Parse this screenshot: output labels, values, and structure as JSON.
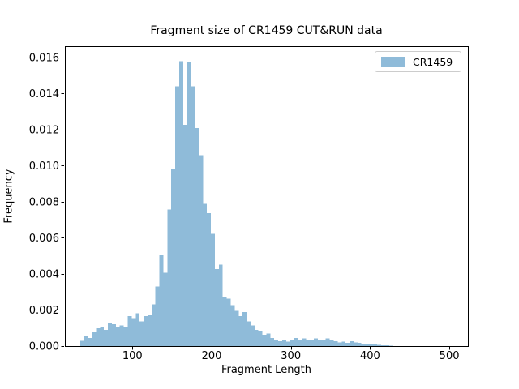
{
  "title": "Fragment size of CR1459 CUT&RUN data",
  "axes": {
    "xlabel": "Fragment Length",
    "ylabel": "Frequency"
  },
  "legend": {
    "label": "CR1459",
    "position": "upper right"
  },
  "colors": {
    "bar_fill": "#8fbbd9",
    "axis": "#000000",
    "background": "#ffffff",
    "legend_border": "#cccccc"
  },
  "chart_data": {
    "type": "bar",
    "subtype": "histogram",
    "title": "Fragment size of CR1459 CUT&RUN data",
    "xlabel": "Fragment Length",
    "ylabel": "Frequency",
    "legend_entries": [
      "CR1459"
    ],
    "legend_position": "upper right",
    "grid": false,
    "bin_start": 34,
    "bin_width": 5,
    "series": [
      {
        "name": "CR1459",
        "frequencies": [
          0.0003,
          0.00054,
          0.00044,
          0.00076,
          0.00099,
          0.00109,
          0.00091,
          0.00129,
          0.00121,
          0.00107,
          0.00114,
          0.00107,
          0.00166,
          0.00151,
          0.00181,
          0.00136,
          0.00166,
          0.00171,
          0.00231,
          0.00331,
          0.00503,
          0.00406,
          0.00758,
          0.00983,
          0.0144,
          0.0158,
          0.01227,
          0.01577,
          0.0144,
          0.01208,
          0.01058,
          0.00788,
          0.00736,
          0.00623,
          0.00428,
          0.00451,
          0.00271,
          0.00264,
          0.00226,
          0.00196,
          0.00166,
          0.00189,
          0.00136,
          0.00114,
          0.00091,
          0.00084,
          0.00062,
          0.00069,
          0.00046,
          0.00036,
          0.00027,
          0.00031,
          0.00024,
          0.00036,
          0.00046,
          0.00036,
          0.00042,
          0.00036,
          0.00031,
          0.00042,
          0.00036,
          0.00031,
          0.00042,
          0.00036,
          0.00027,
          0.00021,
          0.00024,
          0.00017,
          0.00028,
          0.0002,
          0.00017,
          0.00013,
          0.00012,
          0.0001,
          9e-05,
          7e-05,
          5e-05,
          4e-05,
          3e-05
        ]
      }
    ],
    "x_ticks": [
      100,
      200,
      300,
      400,
      500
    ],
    "y_ticks": [
      0,
      0.002,
      0.004,
      0.006,
      0.008,
      0.01,
      0.012,
      0.014,
      0.016
    ],
    "y_tick_decimals": 3,
    "xlim": [
      14.7,
      523.4
    ],
    "ylim": [
      0,
      0.016629
    ]
  }
}
